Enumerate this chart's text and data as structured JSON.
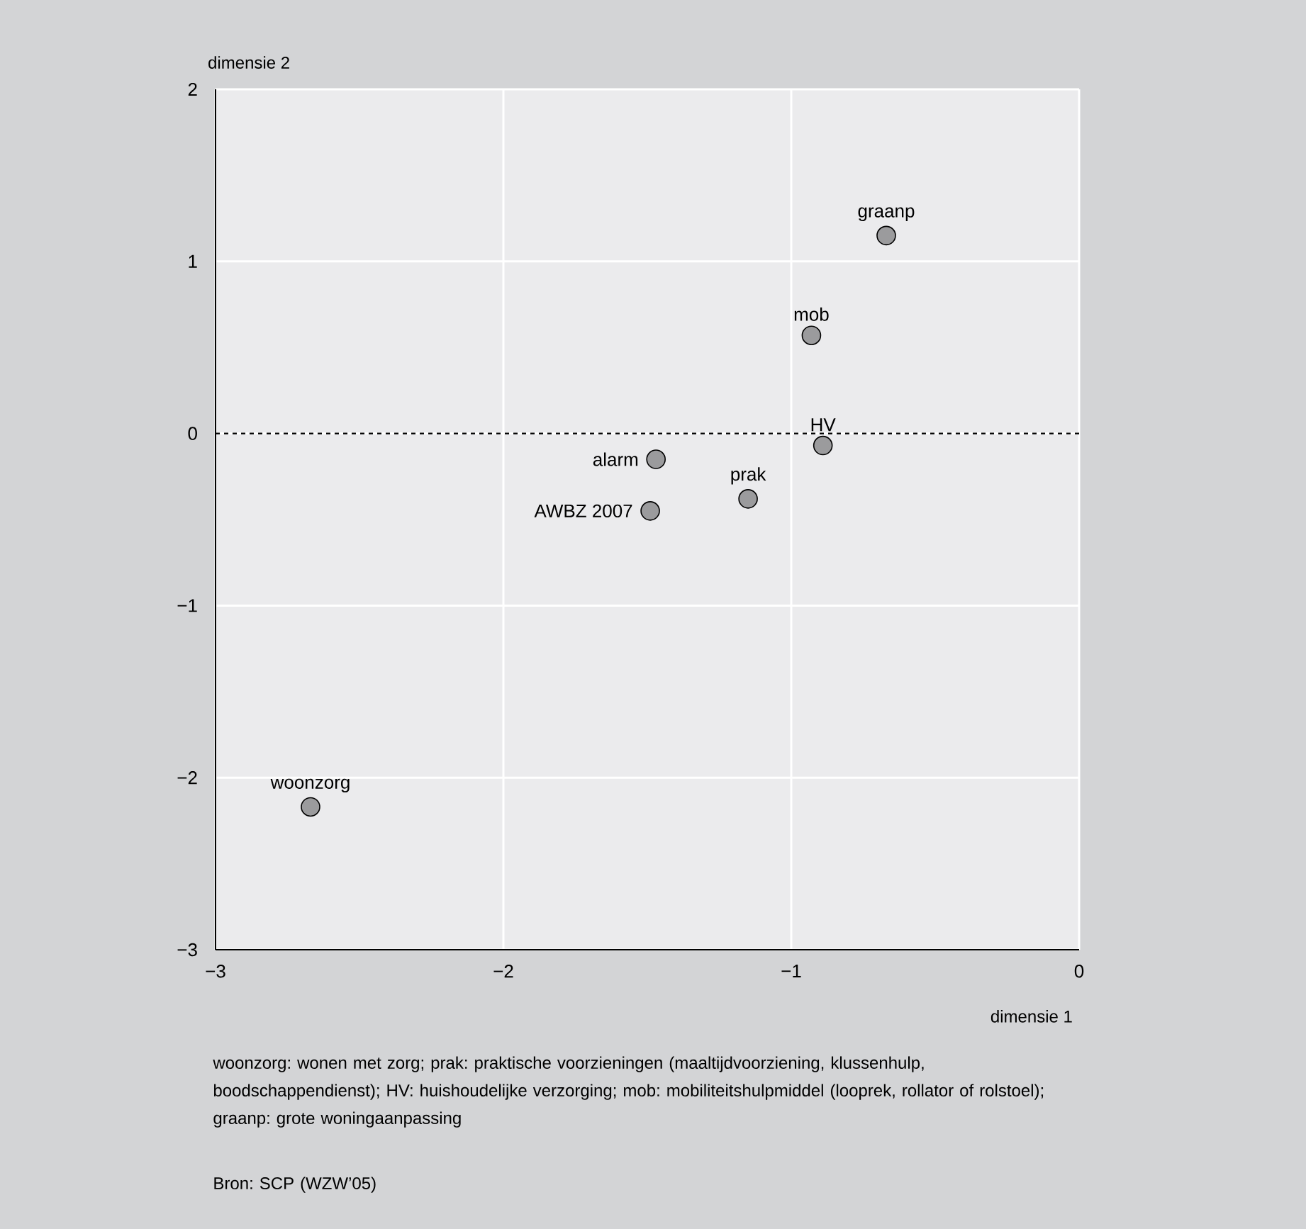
{
  "chart_data": {
    "type": "scatter",
    "xlabel": "dimensie 1",
    "ylabel": "dimensie 2",
    "x": [
      -0.67,
      -0.93,
      -0.89,
      -1.47,
      -1.15,
      -1.49,
      -2.67
    ],
    "values": [
      1.15,
      0.57,
      -0.07,
      -0.15,
      -0.38,
      -0.45,
      -2.17
    ],
    "color": "#9b9b9d",
    "marker": "circle",
    "grid": true,
    "xlim": [
      -3,
      0
    ],
    "xticks": [
      {
        "value": -3,
        "label": "−3"
      },
      {
        "value": -2,
        "label": "−2"
      },
      {
        "value": -1,
        "label": "−1"
      },
      0
    ],
    "ylim": [
      -3,
      2
    ],
    "yticks": [
      {
        "value": -3,
        "label": "−3"
      },
      {
        "value": -2,
        "label": "−2"
      },
      {
        "value": -1,
        "label": "−1"
      },
      0,
      1,
      2
    ],
    "ref_lines": [
      {
        "axis": "y",
        "value": 0,
        "line_style": "dashed",
        "color": "#000000"
      }
    ],
    "annotations": [
      {
        "text": "graanp",
        "x": -0.67,
        "y": 1.15
      },
      {
        "text": "mob",
        "x": -0.93,
        "y": 0.57
      },
      {
        "text": "HV",
        "x": -0.89,
        "y": -0.07
      },
      {
        "text": "alarm",
        "x": -1.47,
        "y": -0.15
      },
      {
        "text": "prak",
        "x": -1.15,
        "y": -0.38
      },
      {
        "text": "AWBZ 2007",
        "x": -1.49,
        "y": -0.45
      },
      {
        "text": "woonzorg",
        "x": -2.67,
        "y": -2.17
      },
      "woonzorg: wonen met zorg; prak: praktische voorzieningen (maaltijdvoorziening, klussenhulp, boodschappendienst); HV: huishoudelijke verzorging; mob: mobiliteitshulpmiddel (looprek, rollator of rolstoel); graanp: grote woningaanpassing",
      "Bron: SCP (WZW’05)"
    ]
  }
}
